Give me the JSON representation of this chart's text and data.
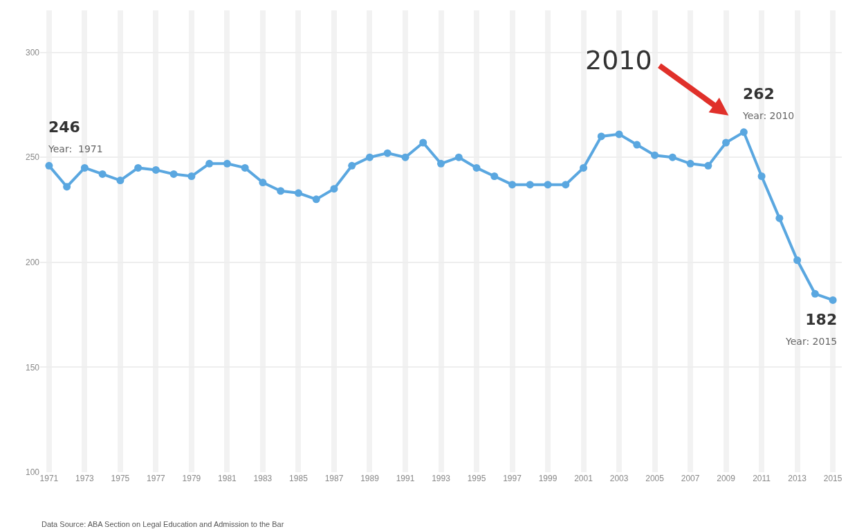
{
  "chart_data": {
    "type": "line",
    "x": [
      1971,
      1972,
      1973,
      1974,
      1975,
      1976,
      1977,
      1978,
      1979,
      1980,
      1981,
      1982,
      1983,
      1984,
      1985,
      1986,
      1987,
      1988,
      1989,
      1990,
      1991,
      1992,
      1993,
      1994,
      1995,
      1996,
      1997,
      1998,
      1999,
      2000,
      2001,
      2002,
      2003,
      2004,
      2005,
      2006,
      2007,
      2008,
      2009,
      2010,
      2011,
      2012,
      2013,
      2014,
      2015
    ],
    "series": [
      {
        "color": "#5aa7e0",
        "values": [
          246,
          236,
          245,
          242,
          239,
          245,
          244,
          242,
          241,
          247,
          247,
          245,
          238,
          234,
          233,
          230,
          235,
          246,
          250,
          252,
          250,
          257,
          247,
          250,
          245,
          241,
          237,
          237,
          237,
          237,
          245,
          260,
          261,
          256,
          251,
          250,
          247,
          246,
          257,
          262,
          241,
          221,
          201,
          185,
          182
        ]
      }
    ],
    "xlim": [
      1970.5,
      2015.5
    ],
    "xticks": [
      1971,
      1973,
      1975,
      1977,
      1979,
      1981,
      1983,
      1985,
      1987,
      1989,
      1991,
      1993,
      1995,
      1997,
      1999,
      2001,
      2003,
      2005,
      2007,
      2009,
      2011,
      2013,
      2015
    ],
    "ylim": [
      100,
      320
    ],
    "yticks": [
      100,
      150,
      200,
      250,
      300
    ],
    "grid": true,
    "marker": "circle",
    "line_style": "solid",
    "legend": false,
    "annotations": [
      {
        "text": "246\nYear:  1971",
        "x": 1971,
        "y": 246
      },
      {
        "text": "262\nYear: 2010",
        "x": 2010,
        "y": 262
      },
      {
        "text": "182\nYear: 2015",
        "x": 2015,
        "y": 182
      },
      "2010",
      "Data Source: ABA Section on Legal Education and Admission to the Bar"
    ]
  }
}
